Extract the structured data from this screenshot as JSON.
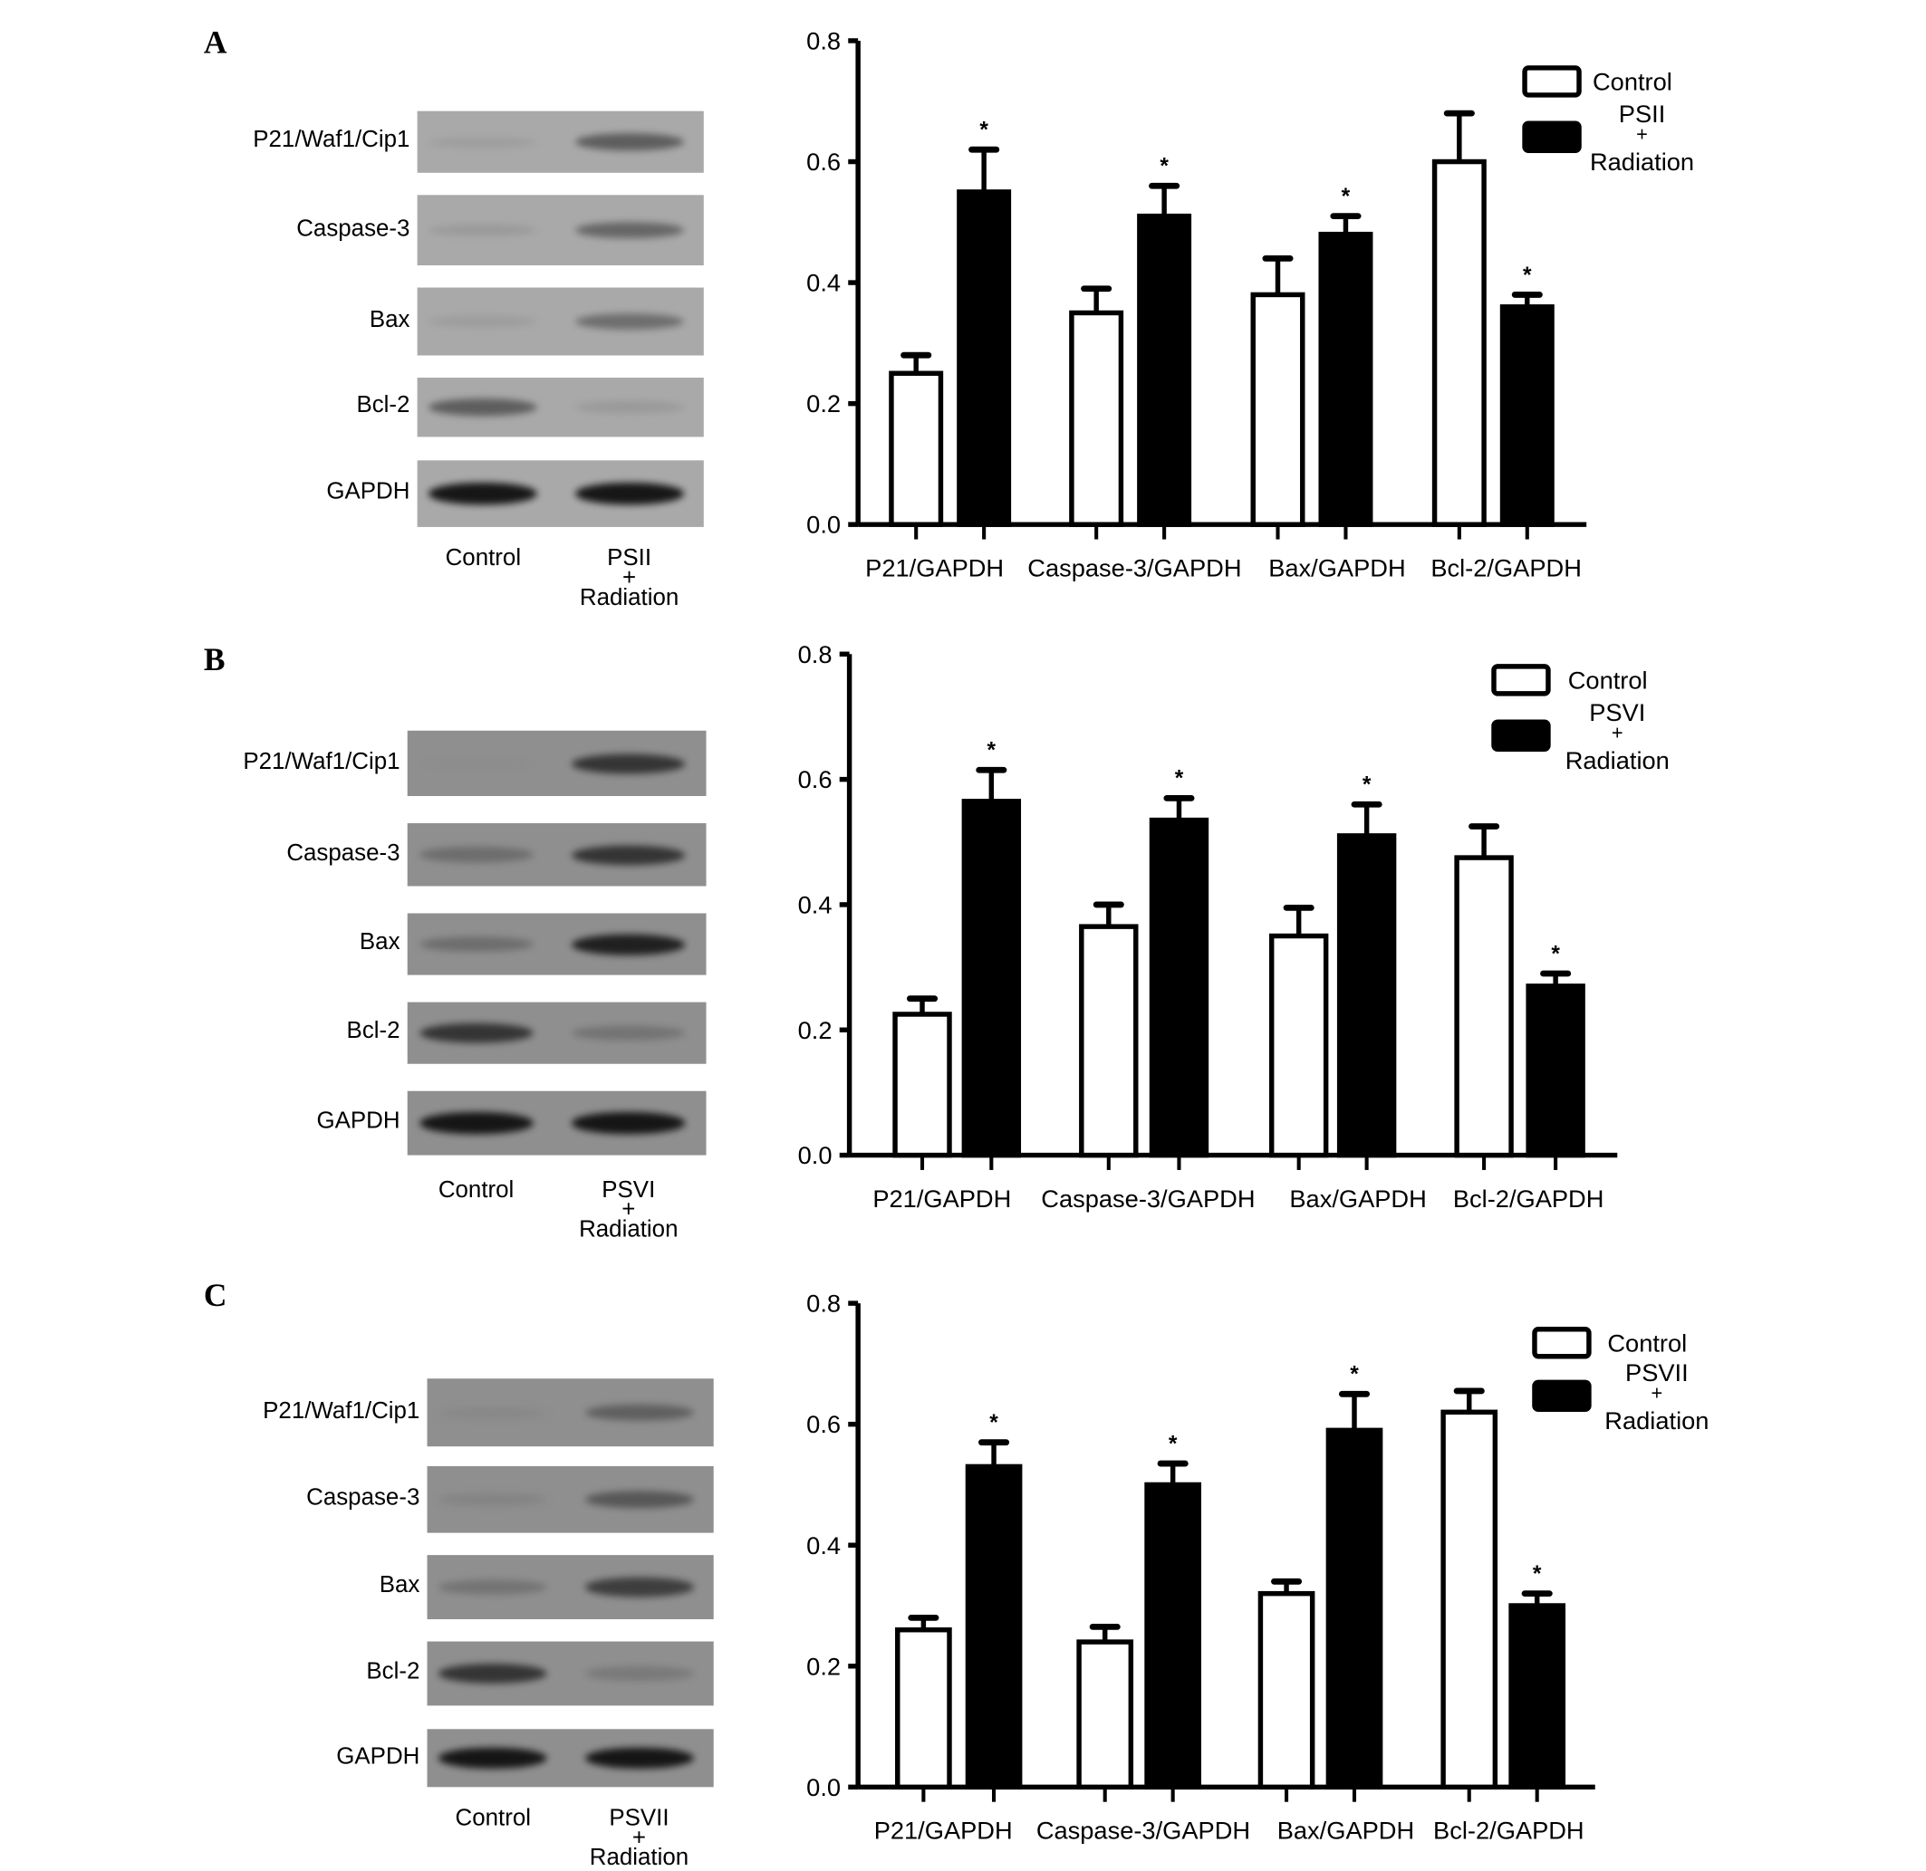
{
  "chart_data": [
    {
      "type": "bar",
      "panel": "A",
      "title": "",
      "xlabel": "",
      "ylabel": "",
      "ylim": [
        0,
        0.8
      ],
      "yticks": [
        "0.0",
        "0.2",
        "0.4",
        "0.6",
        "0.8"
      ],
      "categories": [
        "P21/GAPDH",
        "Caspase-3/GAPDH",
        "Bax/GAPDH",
        "Bcl-2/GAPDH"
      ],
      "series": [
        {
          "name": "Control",
          "fill": "#ffffff",
          "values": [
            0.25,
            0.35,
            0.38,
            0.6
          ],
          "error": [
            0.03,
            0.04,
            0.06,
            0.08
          ],
          "significant": [
            false,
            false,
            false,
            false
          ]
        },
        {
          "name_lines": [
            "PSII",
            "+",
            "Radiation"
          ],
          "name": "PSII + Radiation",
          "fill": "#000000",
          "values": [
            0.55,
            0.51,
            0.48,
            0.36
          ],
          "error": [
            0.07,
            0.05,
            0.03,
            0.02
          ],
          "significant": [
            true,
            true,
            true,
            true
          ]
        }
      ],
      "legend": "top-right",
      "significance_mark": "*"
    },
    {
      "type": "bar",
      "panel": "B",
      "title": "",
      "xlabel": "",
      "ylabel": "",
      "ylim": [
        0,
        0.8
      ],
      "yticks": [
        "0.0",
        "0.2",
        "0.4",
        "0.6",
        "0.8"
      ],
      "categories": [
        "P21/GAPDH",
        "Caspase-3/GAPDH",
        "Bax/GAPDH",
        "Bcl-2/GAPDH"
      ],
      "series": [
        {
          "name": "Control",
          "fill": "#ffffff",
          "values": [
            0.225,
            0.365,
            0.35,
            0.475
          ],
          "error": [
            0.025,
            0.035,
            0.045,
            0.05
          ],
          "significant": [
            false,
            false,
            false,
            false
          ]
        },
        {
          "name_lines": [
            "PSVI",
            "+",
            "Radiation"
          ],
          "name": "PSVI + Radiation",
          "fill": "#000000",
          "values": [
            0.565,
            0.535,
            0.51,
            0.27
          ],
          "error": [
            0.05,
            0.035,
            0.05,
            0.02
          ],
          "significant": [
            true,
            true,
            true,
            true
          ]
        }
      ],
      "legend": "top-right",
      "significance_mark": "*"
    },
    {
      "type": "bar",
      "panel": "C",
      "title": "",
      "xlabel": "",
      "ylabel": "",
      "ylim": [
        0,
        0.8
      ],
      "yticks": [
        "0.0",
        "0.2",
        "0.4",
        "0.6",
        "0.8"
      ],
      "categories": [
        "P21/GAPDH",
        "Caspase-3/GAPDH",
        "Bax/GAPDH",
        "Bcl-2/GAPDH"
      ],
      "series": [
        {
          "name": "Control",
          "fill": "#ffffff",
          "values": [
            0.26,
            0.24,
            0.32,
            0.62
          ],
          "error": [
            0.02,
            0.025,
            0.02,
            0.035
          ],
          "significant": [
            false,
            false,
            false,
            false
          ]
        },
        {
          "name_lines": [
            "PSVII",
            "+",
            "Radiation"
          ],
          "name": "PSVII + Radiation",
          "fill": "#000000",
          "values": [
            0.53,
            0.5,
            0.59,
            0.3
          ],
          "error": [
            0.04,
            0.035,
            0.06,
            0.02
          ],
          "significant": [
            true,
            true,
            true,
            true
          ]
        }
      ],
      "legend": "top-right",
      "significance_mark": "*"
    }
  ],
  "blots": [
    {
      "panel": "A",
      "rows": [
        "P21/Waf1/Cip1",
        "Caspase-3",
        "Bax",
        "Bcl-2",
        "GAPDH"
      ],
      "lanes": [
        "Control",
        [
          "PSII",
          "+",
          "Radiation"
        ]
      ],
      "band_intensity": [
        [
          0.1,
          0.6
        ],
        [
          0.15,
          0.55
        ],
        [
          0.12,
          0.5
        ],
        [
          0.6,
          0.15
        ],
        [
          0.95,
          0.95
        ]
      ]
    },
    {
      "panel": "B",
      "rows": [
        "P21/Waf1/Cip1",
        "Caspase-3",
        "Bax",
        "Bcl-2",
        "GAPDH"
      ],
      "lanes": [
        "Control",
        [
          "PSVI",
          "+",
          "Radiation"
        ]
      ],
      "band_intensity": [
        [
          0.15,
          0.8
        ],
        [
          0.45,
          0.8
        ],
        [
          0.45,
          0.9
        ],
        [
          0.8,
          0.4
        ],
        [
          0.95,
          0.95
        ]
      ]
    },
    {
      "panel": "C",
      "rows": [
        "P21/Waf1/Cip1",
        "Caspase-3",
        "Bax",
        "Bcl-2",
        "GAPDH"
      ],
      "lanes": [
        "Control",
        [
          "PSVII",
          "+",
          "Radiation"
        ]
      ],
      "band_intensity": [
        [
          0.2,
          0.55
        ],
        [
          0.25,
          0.6
        ],
        [
          0.4,
          0.75
        ],
        [
          0.8,
          0.35
        ],
        [
          0.95,
          0.95
        ]
      ]
    }
  ]
}
